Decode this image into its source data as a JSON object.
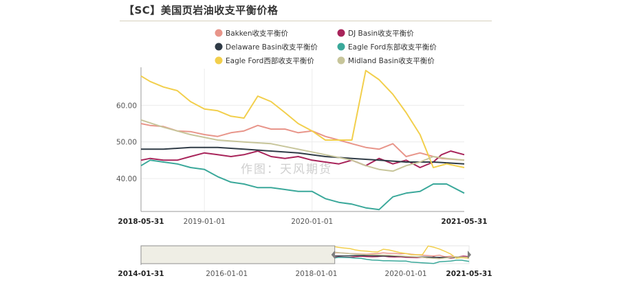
{
  "title": "【SC】美国页岩油收支平衡价格",
  "watermark": "作图：天风期货",
  "chart_data": {
    "type": "line",
    "ylim": [
      31,
      70
    ],
    "y_ticks": [
      {
        "value": 40,
        "label": "40.00"
      },
      {
        "value": 50,
        "label": "50.00"
      },
      {
        "value": 60,
        "label": "60.00"
      }
    ],
    "x_range": [
      "2018-05-31",
      "2021-05-31"
    ],
    "x_ticks": [
      {
        "date": "2018-05-31",
        "label": "2018-05-31",
        "bold": true
      },
      {
        "date": "2019-01-01",
        "label": "2019-01-01",
        "bold": false
      },
      {
        "date": "2020-01-01",
        "label": "2020-01-01",
        "bold": false
      },
      {
        "date": "2021-05-31",
        "label": "2021-05-31",
        "bold": true
      }
    ],
    "grid": true,
    "legend_position": "top",
    "series": [
      {
        "name": "Bakken收支平衡价",
        "color": "#e8958a",
        "points": [
          [
            "2018-05-31",
            55.0
          ],
          [
            "2018-07-01",
            54.5
          ],
          [
            "2018-08-15",
            54.2
          ],
          [
            "2018-10-01",
            53.0
          ],
          [
            "2018-11-15",
            52.8
          ],
          [
            "2019-01-01",
            52.0
          ],
          [
            "2019-02-15",
            51.5
          ],
          [
            "2019-04-01",
            52.5
          ],
          [
            "2019-05-15",
            53.0
          ],
          [
            "2019-07-01",
            54.5
          ],
          [
            "2019-08-15",
            53.5
          ],
          [
            "2019-10-01",
            53.5
          ],
          [
            "2019-11-15",
            52.5
          ],
          [
            "2020-01-01",
            53.0
          ],
          [
            "2020-02-15",
            51.5
          ],
          [
            "2020-04-01",
            50.5
          ],
          [
            "2020-05-15",
            49.5
          ],
          [
            "2020-07-01",
            48.5
          ],
          [
            "2020-08-15",
            48.0
          ],
          [
            "2020-10-01",
            49.5
          ],
          [
            "2020-11-15",
            46.0
          ],
          [
            "2021-01-01",
            47.0
          ],
          [
            "2021-02-15",
            46.0
          ],
          [
            "2021-03-15",
            45.5
          ],
          [
            "2021-05-31",
            45.0
          ]
        ]
      },
      {
        "name": "DJ Basin收支平衡价",
        "color": "#a8245a",
        "points": [
          [
            "2018-05-31",
            45.0
          ],
          [
            "2018-07-01",
            45.5
          ],
          [
            "2018-08-15",
            45.0
          ],
          [
            "2018-10-01",
            45.0
          ],
          [
            "2018-11-15",
            46.0
          ],
          [
            "2019-01-01",
            47.0
          ],
          [
            "2019-02-15",
            46.5
          ],
          [
            "2019-04-01",
            46.0
          ],
          [
            "2019-05-15",
            46.5
          ],
          [
            "2019-07-01",
            47.5
          ],
          [
            "2019-08-15",
            46.0
          ],
          [
            "2019-10-01",
            45.5
          ],
          [
            "2019-11-15",
            46.0
          ],
          [
            "2020-01-01",
            45.0
          ],
          [
            "2020-02-15",
            44.5
          ],
          [
            "2020-04-01",
            44.0
          ],
          [
            "2020-05-15",
            45.0
          ],
          [
            "2020-07-01",
            43.5
          ],
          [
            "2020-08-15",
            45.5
          ],
          [
            "2020-10-01",
            44.0
          ],
          [
            "2020-11-15",
            45.0
          ],
          [
            "2021-01-01",
            43.0
          ],
          [
            "2021-02-15",
            44.5
          ],
          [
            "2021-03-15",
            46.5
          ],
          [
            "2021-04-15",
            47.5
          ],
          [
            "2021-05-31",
            46.5
          ]
        ]
      },
      {
        "name": "Delaware Basin收支平衡价",
        "color": "#2f3b46",
        "points": [
          [
            "2018-05-31",
            48.0
          ],
          [
            "2018-08-15",
            48.0
          ],
          [
            "2018-11-15",
            48.5
          ],
          [
            "2019-02-15",
            48.5
          ],
          [
            "2019-05-15",
            48.0
          ],
          [
            "2019-08-15",
            47.5
          ],
          [
            "2019-11-15",
            47.0
          ],
          [
            "2020-02-15",
            46.0
          ],
          [
            "2020-05-15",
            45.5
          ],
          [
            "2020-08-15",
            45.0
          ],
          [
            "2020-11-15",
            44.5
          ],
          [
            "2021-02-15",
            44.5
          ],
          [
            "2021-05-31",
            44.0
          ]
        ]
      },
      {
        "name": "Eagle Ford东部收支平衡价",
        "color": "#3aa89a",
        "points": [
          [
            "2018-05-31",
            43.5
          ],
          [
            "2018-07-01",
            45.0
          ],
          [
            "2018-08-15",
            44.5
          ],
          [
            "2018-10-01",
            44.0
          ],
          [
            "2018-11-15",
            43.0
          ],
          [
            "2019-01-01",
            42.5
          ],
          [
            "2019-02-15",
            40.5
          ],
          [
            "2019-04-01",
            39.0
          ],
          [
            "2019-05-15",
            38.5
          ],
          [
            "2019-07-01",
            37.5
          ],
          [
            "2019-08-15",
            37.5
          ],
          [
            "2019-10-01",
            37.0
          ],
          [
            "2019-11-15",
            36.5
          ],
          [
            "2020-01-01",
            36.5
          ],
          [
            "2020-02-15",
            34.5
          ],
          [
            "2020-04-01",
            33.5
          ],
          [
            "2020-05-15",
            33.0
          ],
          [
            "2020-07-01",
            32.0
          ],
          [
            "2020-08-15",
            31.5
          ],
          [
            "2020-10-01",
            35.0
          ],
          [
            "2020-11-15",
            36.0
          ],
          [
            "2021-01-01",
            36.5
          ],
          [
            "2021-02-15",
            38.5
          ],
          [
            "2021-04-01",
            38.5
          ],
          [
            "2021-05-31",
            36.0
          ]
        ]
      },
      {
        "name": "Eagle Ford西部收支平衡价",
        "color": "#f2cf4c",
        "points": [
          [
            "2018-05-31",
            68.0
          ],
          [
            "2018-07-01",
            66.5
          ],
          [
            "2018-08-15",
            65.0
          ],
          [
            "2018-10-01",
            64.0
          ],
          [
            "2018-11-15",
            61.0
          ],
          [
            "2019-01-01",
            59.0
          ],
          [
            "2019-02-15",
            58.5
          ],
          [
            "2019-04-01",
            57.0
          ],
          [
            "2019-05-15",
            56.5
          ],
          [
            "2019-07-01",
            62.5
          ],
          [
            "2019-08-15",
            61.0
          ],
          [
            "2019-10-01",
            58.0
          ],
          [
            "2019-11-15",
            55.0
          ],
          [
            "2020-01-01",
            53.0
          ],
          [
            "2020-02-15",
            50.5
          ],
          [
            "2020-04-01",
            50.5
          ],
          [
            "2020-05-15",
            50.5
          ],
          [
            "2020-07-01",
            69.5
          ],
          [
            "2020-08-15",
            67.0
          ],
          [
            "2020-10-01",
            63.0
          ],
          [
            "2020-11-15",
            58.0
          ],
          [
            "2021-01-01",
            52.0
          ],
          [
            "2021-02-15",
            43.0
          ],
          [
            "2021-04-01",
            44.0
          ],
          [
            "2021-05-31",
            43.0
          ]
        ]
      },
      {
        "name": "Midland Basin收支平衡价",
        "color": "#c7c59a",
        "points": [
          [
            "2018-05-31",
            56.0
          ],
          [
            "2018-08-15",
            54.0
          ],
          [
            "2018-11-15",
            52.0
          ],
          [
            "2019-02-15",
            50.5
          ],
          [
            "2019-05-15",
            50.0
          ],
          [
            "2019-08-15",
            49.5
          ],
          [
            "2019-11-15",
            48.0
          ],
          [
            "2020-02-15",
            46.5
          ],
          [
            "2020-05-15",
            45.0
          ],
          [
            "2020-07-01",
            43.5
          ],
          [
            "2020-08-15",
            42.5
          ],
          [
            "2020-10-01",
            42.0
          ],
          [
            "2020-11-15",
            43.5
          ],
          [
            "2021-01-01",
            44.5
          ],
          [
            "2021-02-15",
            46.0
          ],
          [
            "2021-04-01",
            45.5
          ],
          [
            "2021-05-31",
            45.0
          ]
        ]
      }
    ]
  },
  "navigator": {
    "x_range": [
      "2014-01-31",
      "2021-05-31"
    ],
    "window": [
      "2014-01-31",
      "2018-05-31"
    ],
    "x_ticks": [
      {
        "date": "2014-01-31",
        "label": "2014-01-31",
        "bold": true
      },
      {
        "date": "2016-01-01",
        "label": "2016-01-01",
        "bold": false
      },
      {
        "date": "2018-01-01",
        "label": "2018-01-01",
        "bold": false
      },
      {
        "date": "2020-01-01",
        "label": "2020-01-01",
        "bold": false
      },
      {
        "date": "2021-05-31",
        "label": "2021-05-31",
        "bold": true
      }
    ]
  }
}
